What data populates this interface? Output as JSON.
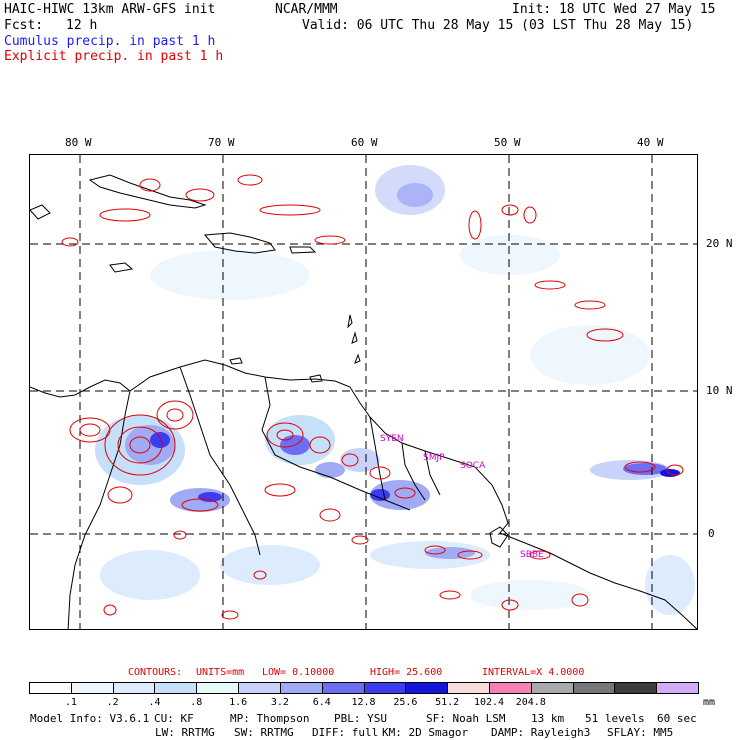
{
  "header": {
    "model_title": "HAIC-HIWC 13km ARW-GFS init",
    "center": "NCAR/MMM",
    "init": "Init: 18 UTC Wed 27 May 15",
    "fcst_label": "Fcst:",
    "fcst_value": "12 h",
    "valid": "Valid: 06 UTC Thu 28 May 15 (03 LST Thu 28 May 15)",
    "cumulus_label": "Cumulus precip. in past 1 h",
    "explicit_label": "Explicit precip. in past 1 h"
  },
  "map": {
    "lon_labels": [
      "80 W",
      "70 W",
      "60 W",
      "50 W",
      "40 W"
    ],
    "lat_labels": [
      "20 N",
      "10 N",
      "0"
    ],
    "stations": [
      "SYEN",
      "SMJP",
      "SOCA",
      "SBBE"
    ],
    "colors": {
      "coast": "#000000",
      "grid": "#000000",
      "explicit_contour": "#e00000",
      "station_label": "#d000d0"
    }
  },
  "contours": {
    "label": "CONTOURS:",
    "units": "UNITS=mm",
    "low": "LOW= 0.10000",
    "high": "HIGH= 25.600",
    "interval": "INTERVAL=X 4.0000"
  },
  "colorbar": {
    "colors": [
      "#ffffff",
      "#eef6fe",
      "#dcecfc",
      "#c6e0fa",
      "#e6fafa",
      "#c8d2fa",
      "#a0aaf5",
      "#6e6ef5",
      "#3c3cf0",
      "#1414dc",
      "#fadcdc",
      "#f582b4",
      "#aaaaaa",
      "#787878",
      "#3c3c3c",
      "#d2aaf5"
    ],
    "tick_labels": [
      ".1",
      ".2",
      ".4",
      ".8",
      "1.6",
      "3.2",
      "6.4",
      "12.8",
      "25.6",
      "51.2",
      "102.4",
      "204.8"
    ],
    "units": "mm"
  },
  "model_info": {
    "line1": [
      "Model Info: V3.6.1",
      "CU: KF",
      "MP: Thompson",
      "PBL: YSU",
      "SF: Noah LSM",
      "13 km",
      "51 levels",
      "60 sec"
    ],
    "line2": [
      "LW: RRTMG",
      "SW: RRTMG",
      "DIFF: full",
      "KM: 2D Smagor",
      "DAMP: Rayleigh3",
      "SFLAY: MM5"
    ]
  }
}
